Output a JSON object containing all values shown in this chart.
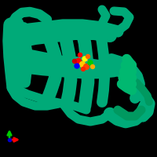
{
  "background_color": "#000000",
  "figure_size": [
    2.0,
    2.0
  ],
  "dpi": 100,
  "protein_color": "#00aa78",
  "protein_color2": "#00c87a",
  "ligand_colors": [
    "#ff0000",
    "#ffff00",
    "#0000ff",
    "#00ff00",
    "#ff6600",
    "#cc0000"
  ],
  "axis_x_color": "#ff0000",
  "axis_y_color": "#00cc00",
  "axis_z_color": "#0000cc"
}
